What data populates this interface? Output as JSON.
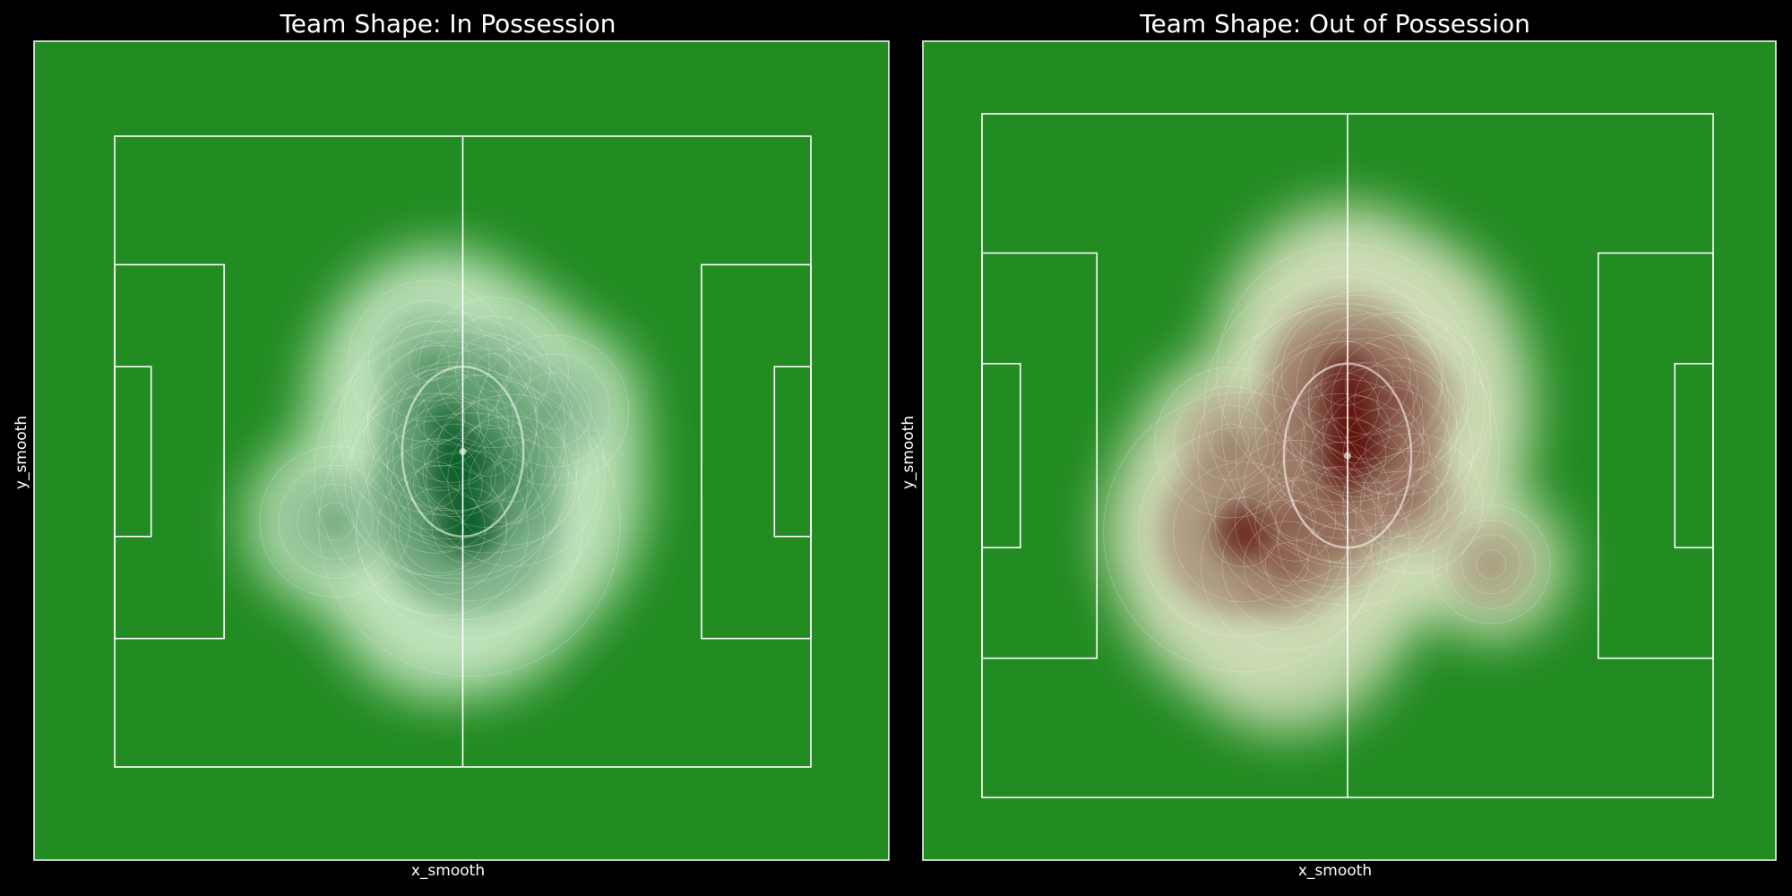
{
  "chart_data": [
    {
      "type": "heatmap",
      "title": "Team Shape: In Possession",
      "xlabel": "x_smooth",
      "ylabel": "y_smooth",
      "colormap": "Greens",
      "grid": false,
      "pitch_color": "#228B22",
      "line_color": "#ffffff",
      "density_peaks": [
        {
          "x": -0.4,
          "y": -2.8,
          "w": 0.95
        },
        {
          "x": -1.0,
          "y": -0.4,
          "w": 0.75
        },
        {
          "x": -1.3,
          "y": 3.1,
          "w": 0.65
        },
        {
          "x": -2.7,
          "y": 4.1,
          "w": 0.5
        },
        {
          "x": -3.2,
          "y": -4.0,
          "w": 0.45
        },
        {
          "x": 3.1,
          "y": 0.1,
          "w": 0.55
        },
        {
          "x": 3.7,
          "y": 9.6,
          "w": 0.3
        },
        {
          "x": -4.1,
          "y": 11.0,
          "w": 0.35
        },
        {
          "x": 6.0,
          "y": -3.5,
          "w": 0.4
        },
        {
          "x": 0.8,
          "y": -9.0,
          "w": 1.0
        },
        {
          "x": -2.5,
          "y": -9.5,
          "w": 0.4
        },
        {
          "x": -15.5,
          "y": -8.5,
          "w": 0.3
        },
        {
          "x": 11.0,
          "y": 5.0,
          "w": 0.3
        }
      ]
    },
    {
      "type": "heatmap",
      "title": "Team Shape: Out of Possession",
      "xlabel": "x_smooth",
      "ylabel": "y_smooth",
      "colormap": "Reds",
      "grid": false,
      "pitch_color": "#228B22",
      "line_color": "#ffffff",
      "density_peaks": [
        {
          "x": 0.1,
          "y": 0.1,
          "w": 1.0
        },
        {
          "x": 1.0,
          "y": 3.0,
          "w": 0.85
        },
        {
          "x": -0.4,
          "y": 5.5,
          "w": 0.9
        },
        {
          "x": -0.2,
          "y": 9.5,
          "w": 0.8
        },
        {
          "x": 2.5,
          "y": 8.0,
          "w": 0.5
        },
        {
          "x": 6.0,
          "y": 6.0,
          "w": 0.45
        },
        {
          "x": 4.5,
          "y": 0.5,
          "w": 0.4
        },
        {
          "x": -0.8,
          "y": -4.0,
          "w": 0.5
        },
        {
          "x": -12.0,
          "y": -8.8,
          "w": 0.9
        },
        {
          "x": -6.0,
          "y": -7.5,
          "w": 0.35
        },
        {
          "x": -7.0,
          "y": -12.5,
          "w": 0.4
        },
        {
          "x": -1.5,
          "y": -10.0,
          "w": 0.3
        },
        {
          "x": -13.5,
          "y": 1.5,
          "w": 0.3
        },
        {
          "x": 7.5,
          "y": -5.5,
          "w": 0.25
        },
        {
          "x": 16.5,
          "y": -12.5,
          "w": 0.15
        }
      ]
    }
  ]
}
